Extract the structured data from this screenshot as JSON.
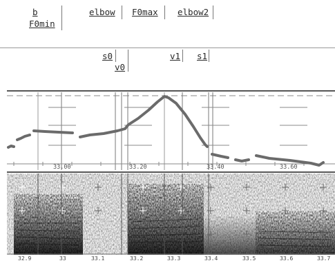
{
  "tier1": {
    "labels": [
      {
        "id": "b",
        "text": "b"
      },
      {
        "id": "F0min",
        "text": "F0min"
      },
      {
        "id": "elbow1",
        "text": "elbow"
      },
      {
        "id": "F0max",
        "text": "F0max"
      },
      {
        "id": "elbow2",
        "text": "elbow2"
      }
    ]
  },
  "tier2": {
    "labels": [
      {
        "id": "s0",
        "text": "s0"
      },
      {
        "id": "v0",
        "text": "v0"
      },
      {
        "id": "v1",
        "text": "v1"
      },
      {
        "id": "s1",
        "text": "s1"
      }
    ]
  },
  "pitch": {
    "time_ticks": [
      "33.00",
      "33.20",
      "33.40",
      "33.60"
    ]
  },
  "spectrogram": {
    "time_axis": [
      "32.9",
      "33",
      "33.1",
      "33.2",
      "33.3",
      "33.4",
      "33.5",
      "33.6",
      "33.7"
    ]
  },
  "colors": {
    "pitch_track": "#6b6b6b",
    "divider": "#555555",
    "grid": "#888888"
  }
}
